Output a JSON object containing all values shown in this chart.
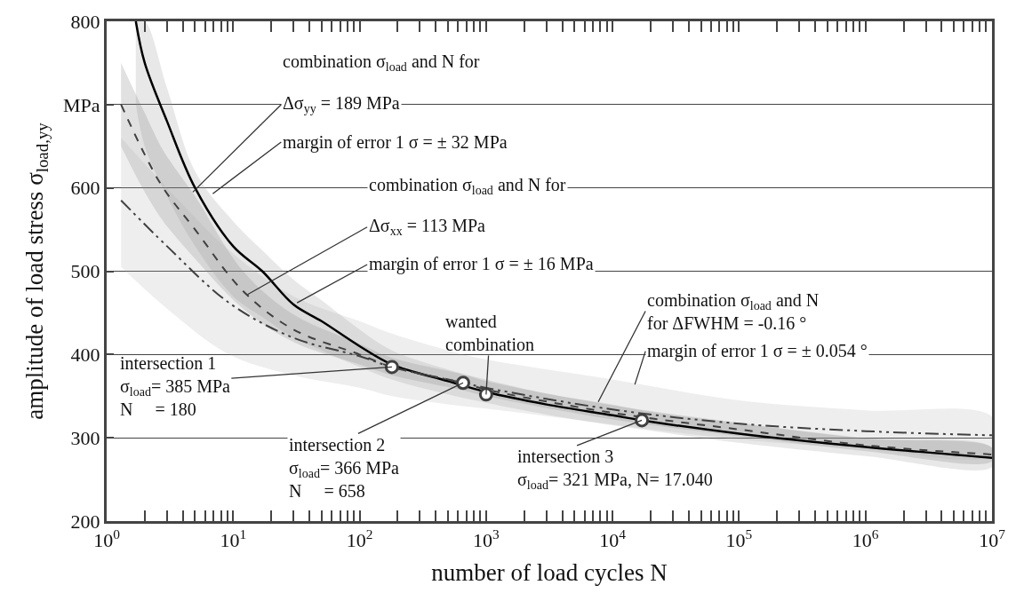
{
  "chart_data": {
    "type": "line",
    "xlabel": "number of load cycles N",
    "ylabel": "amplitude of load stress σ$_{load,yy}$",
    "log": "x",
    "xlim": [
      1,
      10000000
    ],
    "xticks": [
      {
        "value": 1,
        "label": "10$^{0}$"
      },
      {
        "value": 2,
        "label": null
      },
      {
        "value": 3,
        "label": null
      },
      {
        "value": 4,
        "label": null
      },
      {
        "value": 5,
        "label": null
      },
      {
        "value": 6,
        "label": null
      },
      {
        "value": 7,
        "label": null
      },
      {
        "value": 8,
        "label": null
      },
      {
        "value": 9,
        "label": null
      },
      {
        "value": 10,
        "label": "10$^{1}$"
      },
      {
        "value": 20,
        "label": null
      },
      {
        "value": 30,
        "label": null
      },
      {
        "value": 40,
        "label": null
      },
      {
        "value": 50,
        "label": null
      },
      {
        "value": 60,
        "label": null
      },
      {
        "value": 70,
        "label": null
      },
      {
        "value": 80,
        "label": null
      },
      {
        "value": 90,
        "label": null
      },
      {
        "value": 100,
        "label": "10$^{2}$"
      },
      {
        "value": 200,
        "label": null
      },
      {
        "value": 300,
        "label": null
      },
      {
        "value": 400,
        "label": null
      },
      {
        "value": 500,
        "label": null
      },
      {
        "value": 600,
        "label": null
      },
      {
        "value": 700,
        "label": null
      },
      {
        "value": 800,
        "label": null
      },
      {
        "value": 900,
        "label": null
      },
      {
        "value": 1000,
        "label": "10$^{3}$"
      },
      {
        "value": 2000,
        "label": null
      },
      {
        "value": 3000,
        "label": null
      },
      {
        "value": 4000,
        "label": null
      },
      {
        "value": 5000,
        "label": null
      },
      {
        "value": 6000,
        "label": null
      },
      {
        "value": 7000,
        "label": null
      },
      {
        "value": 8000,
        "label": null
      },
      {
        "value": 9000,
        "label": null
      },
      {
        "value": 10000,
        "label": "10$^{4}$"
      },
      {
        "value": 20000,
        "label": null
      },
      {
        "value": 30000,
        "label": null
      },
      {
        "value": 40000,
        "label": null
      },
      {
        "value": 50000,
        "label": null
      },
      {
        "value": 60000,
        "label": null
      },
      {
        "value": 70000,
        "label": null
      },
      {
        "value": 80000,
        "label": null
      },
      {
        "value": 90000,
        "label": null
      },
      {
        "value": 100000,
        "label": "10$^{5}$"
      },
      {
        "value": 200000,
        "label": null
      },
      {
        "value": 300000,
        "label": null
      },
      {
        "value": 400000,
        "label": null
      },
      {
        "value": 500000,
        "label": null
      },
      {
        "value": 600000,
        "label": null
      },
      {
        "value": 700000,
        "label": null
      },
      {
        "value": 800000,
        "label": null
      },
      {
        "value": 900000,
        "label": null
      },
      {
        "value": 1000000,
        "label": "10$^{6}$"
      },
      {
        "value": 2000000,
        "label": null
      },
      {
        "value": 3000000,
        "label": null
      },
      {
        "value": 4000000,
        "label": null
      },
      {
        "value": 5000000,
        "label": null
      },
      {
        "value": 6000000,
        "label": null
      },
      {
        "value": 7000000,
        "label": null
      },
      {
        "value": 8000000,
        "label": null
      },
      {
        "value": 9000000,
        "label": null
      },
      {
        "value": 10000000,
        "label": "10$^{7}$"
      }
    ],
    "ylim": [
      200,
      800
    ],
    "yticks": [
      200,
      300,
      400,
      500,
      600,
      {
        "value": 700,
        "label": "MPa"
      },
      800
    ],
    "grid": "y",
    "series": [
      {
        "color": "#000000",
        "line_style": "solid",
        "marker": "none",
        "x": [
          1.7,
          2,
          3,
          5,
          10,
          17,
          30,
          50,
          100,
          180,
          500,
          1000,
          3000,
          10000,
          17040,
          100000,
          1000000,
          10000000
        ],
        "values": [
          800,
          750,
          680,
          600,
          530,
          500,
          460,
          440,
          410,
          388,
          368,
          355,
          340,
          327,
          321,
          305,
          289,
          276
        ],
        "lower": [
          700,
          650,
          590,
          530,
          470,
          445,
          420,
          405,
          385,
          370,
          352,
          342,
          328,
          315,
          310,
          294,
          278,
          265
        ],
        "upper": [
          800,
          800,
          720,
          620,
          560,
          525,
          490,
          465,
          430,
          405,
          382,
          370,
          353,
          340,
          333,
          317,
          300,
          288
        ]
      },
      {
        "color": "#404040",
        "line_style": "dashed",
        "marker": "none",
        "x": [
          1.3,
          2,
          2.8,
          5,
          12,
          30,
          100,
          180,
          658,
          1000,
          10000,
          100000,
          1000000,
          10000000
        ],
        "values": [
          700,
          640,
          600,
          550,
          476,
          430,
          400,
          385,
          366,
          358,
          330,
          310,
          291,
          280
        ],
        "lower": [
          650,
          595,
          560,
          515,
          455,
          415,
          388,
          375,
          357,
          350,
          322,
          302,
          284,
          272
        ],
        "upper": [
          750,
          690,
          645,
          590,
          500,
          448,
          413,
          396,
          376,
          368,
          339,
          318,
          299,
          288
        ]
      },
      {
        "color": "#404040",
        "line_style": "dashdot",
        "marker": "none",
        "x": [
          1.3,
          3,
          9.3,
          30,
          100,
          180,
          658,
          1000,
          10000,
          100000,
          1000000,
          10000000
        ],
        "values": [
          585,
          530,
          462,
          420,
          398,
          385,
          366,
          360,
          334,
          317,
          308,
          303
        ],
        "lower": [
          505,
          455,
          400,
          375,
          360,
          350,
          338,
          335,
          316,
          298,
          287,
          280
        ],
        "upper": [
          660,
          600,
          525,
          470,
          440,
          425,
          400,
          394,
          370,
          345,
          333,
          325
        ]
      },
      {
        "type": "scatter",
        "color": "#404040",
        "marker": "circle",
        "x": [
          180,
          658,
          1000,
          17040
        ],
        "values": [
          385,
          366,
          352,
          321
        ]
      }
    ],
    "annotations": [
      "combination σ$_{load}$ and N for",
      {
        "text": "Δσ$_{yy}$ = 189 MPa",
        "x": 4.8,
        "y": 595
      },
      {
        "text": "margin of error 1 σ = ± 32 MPa",
        "x": 6.9,
        "y": 593
      },
      "combination σ$_{load}$ and N for",
      {
        "text": "Δσ$_{xx}$ = 113 MPa",
        "x": 13,
        "y": 472
      },
      {
        "text": "margin of error 1 σ = ± 16 MPa",
        "x": 32,
        "y": 462
      },
      {
        "text": "wanted\ncombination",
        "x": 1000,
        "y": 352
      },
      {
        "text": "combination σ$_{load}$ and N\nfor ΔFWHM = -0.16 °",
        "x": 7700,
        "y": 343
      },
      {
        "text": "margin of error 1 σ = ± 0.054 °",
        "x": 15000,
        "y": 364
      },
      {
        "text": "intersection 1\nσ$_{load}$= 385 MPa\nN     = 180",
        "x": 180,
        "y": 385
      },
      {
        "text": "intersection 2\nσ$_{load}$= 366 MPa\nN     = 658",
        "x": 658,
        "y": 366
      },
      {
        "text": "intersection 3\nσ$_{load}$= 321 MPa, N= 17.040",
        "x": 17040,
        "y": 321
      }
    ]
  }
}
